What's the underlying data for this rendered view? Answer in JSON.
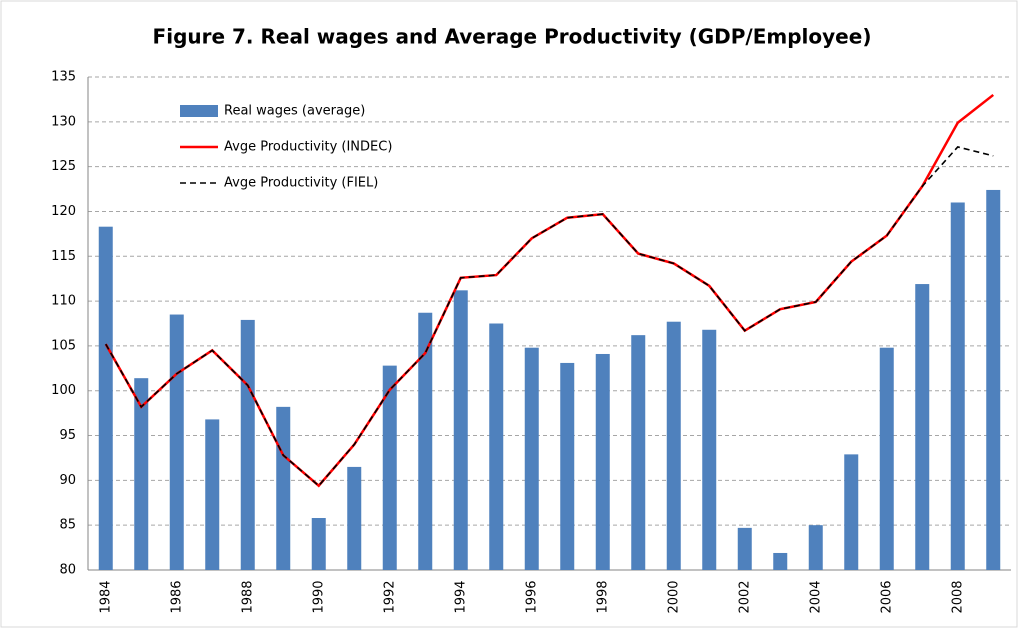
{
  "chart_data": {
    "type": "bar-line",
    "title": "Figure 7. Real wages and Average Productivity (GDP/Employee)",
    "categories": [
      "1984",
      null,
      "1986",
      null,
      "1988",
      null,
      "1990",
      null,
      "1992",
      null,
      "1994",
      null,
      "1996",
      null,
      "1998",
      null,
      "2000",
      null,
      "2002",
      null,
      "2004",
      null,
      "2006",
      null,
      "2008",
      null
    ],
    "ylim": [
      80,
      135
    ],
    "yticks": [
      80,
      85,
      90,
      95,
      100,
      105,
      110,
      115,
      120,
      125,
      130,
      135
    ],
    "grid": true,
    "legend": "upper-left",
    "series": [
      {
        "name": "Real wages (average)",
        "type": "bar",
        "color": "#4f81bd",
        "values": [
          118.3,
          101.4,
          108.5,
          96.8,
          107.9,
          98.2,
          85.8,
          91.5,
          102.8,
          108.7,
          111.2,
          107.5,
          104.8,
          103.1,
          104.1,
          106.2,
          107.7,
          106.8,
          84.7,
          81.9,
          85.0,
          92.9,
          104.8,
          111.9,
          121.0,
          122.4
        ]
      },
      {
        "name": "Avge Productivity (INDEC)",
        "type": "line",
        "color": "#ff0000",
        "dash": false,
        "values": [
          105.2,
          98.2,
          101.9,
          104.5,
          100.6,
          92.8,
          89.4,
          94.0,
          100.1,
          104.2,
          112.6,
          112.9,
          117.0,
          119.3,
          119.7,
          115.3,
          114.2,
          111.7,
          106.7,
          109.1,
          109.9,
          114.4,
          117.3,
          122.8,
          129.9,
          133.0
        ]
      },
      {
        "name": "Avge Productivity (FIEL)",
        "type": "line",
        "color": "#000000",
        "dash": true,
        "values": [
          105.2,
          98.2,
          101.9,
          104.5,
          100.6,
          92.8,
          89.4,
          94.0,
          100.1,
          104.2,
          112.6,
          112.9,
          117.0,
          119.3,
          119.7,
          115.3,
          114.2,
          111.7,
          106.7,
          109.1,
          109.9,
          114.4,
          117.3,
          122.8,
          127.2,
          126.2
        ]
      }
    ]
  }
}
